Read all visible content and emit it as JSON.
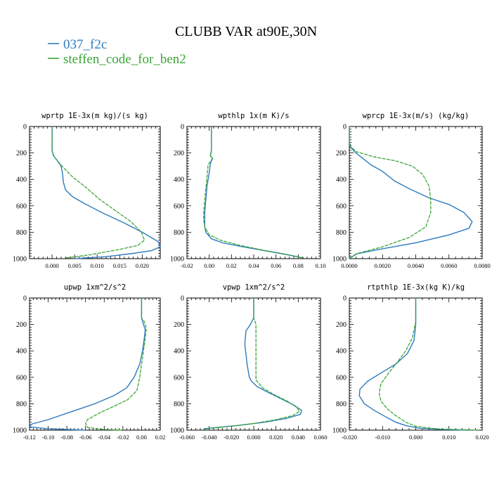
{
  "figure": {
    "title": "CLUBB VAR at90E,30N",
    "legend": [
      {
        "label": "037_f2c",
        "color": "#2e7bbd"
      },
      {
        "label": "steffen_code_for_ben2",
        "color": "#3aa535"
      }
    ]
  },
  "chart_data": [
    {
      "type": "line",
      "title": "wprtp  1E-3x(m kg)/(s kg)",
      "xlim": [
        -0.005,
        0.024
      ],
      "ylim": [
        1000,
        0
      ],
      "xticks": [
        0.0,
        0.005,
        0.01,
        0.015,
        0.02
      ],
      "xtick_labels": [
        "0.000",
        "0.005",
        "0.010",
        "0.015",
        "0.020"
      ],
      "yticks": [
        0,
        200,
        400,
        600,
        800,
        1000
      ],
      "series": [
        {
          "name": "037_f2c",
          "x": [
            0.0,
            0.0,
            0.0,
            0.0003,
            0.0012,
            0.002,
            0.0023,
            0.0025,
            0.003,
            0.0045,
            0.007,
            0.011,
            0.016,
            0.02,
            0.0235,
            0.024,
            0.022,
            0.018,
            0.012,
            0.005
          ],
          "y": [
            0,
            100,
            180,
            220,
            260,
            300,
            350,
            420,
            480,
            530,
            580,
            650,
            730,
            800,
            870,
            910,
            940,
            960,
            985,
            1000
          ]
        },
        {
          "name": "steffen_code_for_ben2",
          "x": [
            0.0,
            0.0,
            0.0,
            0.0005,
            0.0022,
            0.0045,
            0.0075,
            0.0105,
            0.0142,
            0.0175,
            0.0198,
            0.0205,
            0.019,
            0.015,
            0.0085,
            0.003
          ],
          "y": [
            0,
            100,
            190,
            230,
            300,
            380,
            460,
            550,
            640,
            720,
            800,
            860,
            900,
            930,
            970,
            995
          ]
        }
      ]
    },
    {
      "type": "line",
      "title": "wpthlp  1x(m K)/s",
      "xlim": [
        -0.02,
        0.1
      ],
      "ylim": [
        1000,
        0
      ],
      "xticks": [
        -0.02,
        0.0,
        0.02,
        0.04,
        0.06,
        0.08,
        0.1
      ],
      "xtick_labels": [
        "-0.02",
        "0.00",
        "0.02",
        "0.04",
        "0.06",
        "0.08",
        "0.10"
      ],
      "yticks": [
        0,
        200,
        400,
        600,
        800,
        1000
      ],
      "series": [
        {
          "name": "037_f2c",
          "x": [
            0.002,
            0.002,
            0.001,
            0.003,
            0.001,
            0.0,
            -0.002,
            -0.003,
            -0.004,
            -0.004,
            -0.004,
            -0.003,
            0.002,
            0.012,
            0.03,
            0.05,
            0.07,
            0.085
          ],
          "y": [
            0,
            180,
            220,
            240,
            280,
            350,
            450,
            550,
            650,
            720,
            760,
            800,
            850,
            880,
            910,
            940,
            970,
            995
          ]
        },
        {
          "name": "steffen_code_for_ben2",
          "x": [
            0.002,
            0.002,
            0.001,
            0.003,
            -0.001,
            -0.002,
            -0.003,
            -0.004,
            -0.005,
            -0.005,
            -0.004,
            0.0,
            0.01,
            0.028,
            0.048,
            0.068,
            0.085
          ],
          "y": [
            0,
            180,
            220,
            240,
            290,
            380,
            470,
            560,
            650,
            710,
            760,
            820,
            860,
            900,
            935,
            965,
            995
          ]
        }
      ]
    },
    {
      "type": "line",
      "title": "wprcp  1E-3x(m/s) (kg/kg)",
      "xlim": [
        0.0,
        0.008
      ],
      "ylim": [
        1000,
        0
      ],
      "xticks": [
        0.0,
        0.002,
        0.004,
        0.006,
        0.008
      ],
      "xtick_labels": [
        "0.0000",
        "0.0020",
        "0.0040",
        "0.0060",
        "0.0080"
      ],
      "yticks": [
        0,
        200,
        400,
        600,
        800,
        1000
      ],
      "series": [
        {
          "name": "037_f2c",
          "x": [
            0.0,
            0.0,
            0.0001,
            0.0004,
            0.0008,
            0.0013,
            0.002,
            0.0027,
            0.0036,
            0.0048,
            0.006,
            0.0069,
            0.0074,
            0.0072,
            0.006,
            0.004,
            0.0018,
            0.0004,
            0.0
          ],
          "y": [
            0,
            120,
            160,
            200,
            240,
            290,
            340,
            410,
            470,
            540,
            590,
            650,
            720,
            770,
            820,
            880,
            930,
            965,
            1000
          ]
        },
        {
          "name": "steffen_code_for_ben2",
          "x": [
            0.0,
            0.0,
            0.0004,
            0.0015,
            0.0028,
            0.0038,
            0.0044,
            0.0048,
            0.0049,
            0.0049,
            0.0046,
            0.0036,
            0.002,
            0.0005,
            0.0
          ],
          "y": [
            0,
            140,
            190,
            230,
            260,
            300,
            360,
            450,
            550,
            650,
            760,
            840,
            910,
            960,
            1000
          ]
        }
      ]
    },
    {
      "type": "line",
      "title": "upwp  1xm^2/s^2",
      "xlim": [
        -0.12,
        0.02
      ],
      "ylim": [
        1000,
        0
      ],
      "xticks": [
        -0.12,
        -0.1,
        -0.08,
        -0.06,
        -0.04,
        -0.02,
        0.0,
        0.02
      ],
      "xtick_labels": [
        "-0.12",
        "-0.10",
        "-0.08",
        "-0.06",
        "-0.04",
        "-0.02",
        "0.00",
        "0.02"
      ],
      "yticks": [
        0,
        200,
        400,
        600,
        800,
        1000
      ],
      "series": [
        {
          "name": "037_f2c",
          "x": [
            0.0,
            0.0,
            0.002,
            0.004,
            0.003,
            0.001,
            -0.002,
            -0.008,
            -0.016,
            -0.03,
            -0.05,
            -0.075,
            -0.1,
            -0.118,
            -0.12,
            -0.1,
            -0.06
          ],
          "y": [
            0,
            150,
            200,
            240,
            300,
            400,
            500,
            600,
            680,
            740,
            800,
            860,
            920,
            955,
            975,
            990,
            1000
          ]
        },
        {
          "name": "steffen_code_for_ben2",
          "x": [
            0.0,
            0.0,
            0.003,
            0.005,
            0.004,
            0.002,
            0.0,
            -0.002,
            -0.005,
            -0.015,
            -0.03,
            -0.045,
            -0.058,
            -0.06,
            -0.058,
            -0.04,
            -0.02
          ],
          "y": [
            0,
            150,
            180,
            230,
            300,
            400,
            500,
            600,
            700,
            770,
            820,
            870,
            920,
            950,
            980,
            995,
            1000
          ]
        }
      ]
    },
    {
      "type": "line",
      "title": "vpwp  1xm^2/s^2",
      "xlim": [
        -0.06,
        0.06
      ],
      "ylim": [
        1000,
        0
      ],
      "xticks": [
        -0.06,
        -0.04,
        -0.02,
        0.0,
        0.02,
        0.04,
        0.06
      ],
      "xtick_labels": [
        "-0.060",
        "-0.040",
        "-0.020",
        "0.000",
        "0.020",
        "0.040",
        "0.060"
      ],
      "yticks": [
        0,
        200,
        400,
        600,
        800,
        1000
      ],
      "series": [
        {
          "name": "037_f2c",
          "x": [
            0.0,
            0.0,
            -0.003,
            -0.007,
            -0.008,
            -0.007,
            -0.006,
            -0.005,
            -0.004,
            -0.002,
            0.003,
            0.012,
            0.024,
            0.036,
            0.043,
            0.042,
            0.03,
            0.01,
            -0.015,
            -0.04,
            -0.045
          ],
          "y": [
            0,
            150,
            200,
            250,
            350,
            420,
            500,
            550,
            600,
            630,
            670,
            710,
            760,
            810,
            850,
            880,
            910,
            940,
            965,
            985,
            990
          ]
        },
        {
          "name": "steffen_code_for_ben2",
          "x": [
            0.0,
            0.0,
            0.002,
            0.002,
            0.002,
            0.002,
            0.002,
            0.002,
            0.008,
            0.018,
            0.03,
            0.039,
            0.041,
            0.035,
            0.02,
            0.0,
            -0.02,
            -0.04,
            -0.045
          ],
          "y": [
            0,
            150,
            200,
            250,
            350,
            450,
            550,
            620,
            680,
            730,
            780,
            830,
            860,
            890,
            920,
            950,
            970,
            988,
            995
          ]
        }
      ]
    },
    {
      "type": "line",
      "title": "rtpthlp  1E-3x(kg K)/kg",
      "xlim": [
        -0.02,
        0.02
      ],
      "ylim": [
        1000,
        0
      ],
      "xticks": [
        -0.02,
        -0.01,
        0.0,
        0.01,
        0.02
      ],
      "xtick_labels": [
        "-0.020",
        "-0.010",
        "0.000",
        "0.010",
        "0.020"
      ],
      "yticks": [
        0,
        200,
        400,
        600,
        800,
        1000
      ],
      "series": [
        {
          "name": "037_f2c",
          "x": [
            0.0,
            0.0,
            -0.0005,
            -0.0025,
            -0.006,
            -0.01,
            -0.0145,
            -0.0168,
            -0.017,
            -0.0155,
            -0.0125,
            -0.009,
            -0.006,
            -0.003,
            0.001,
            0.008,
            0.016
          ],
          "y": [
            0,
            200,
            320,
            420,
            500,
            560,
            630,
            690,
            740,
            800,
            850,
            900,
            940,
            965,
            985,
            995,
            1000
          ]
        },
        {
          "name": "steffen_code_for_ben2",
          "x": [
            0.0,
            0.0,
            -0.001,
            -0.003,
            -0.006,
            -0.0085,
            -0.0105,
            -0.011,
            -0.0105,
            -0.0085,
            -0.006,
            -0.003,
            0.0,
            0.006,
            0.014,
            0.019
          ],
          "y": [
            0,
            180,
            300,
            400,
            500,
            580,
            650,
            720,
            780,
            840,
            890,
            940,
            970,
            990,
            997,
            1000
          ]
        }
      ]
    }
  ]
}
